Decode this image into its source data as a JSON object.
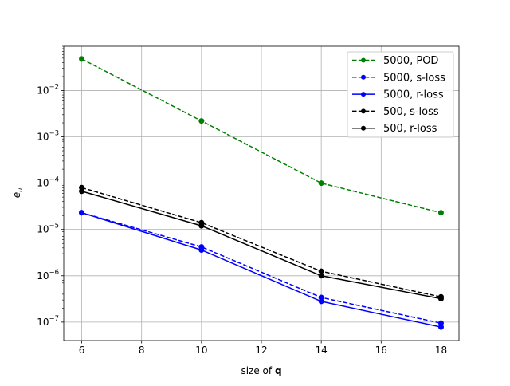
{
  "chart_data": {
    "type": "line",
    "title": "",
    "xlabel_prefix": "size of ",
    "xlabel_bold": "q",
    "ylabel_main": "e",
    "ylabel_sub": "u",
    "x": [
      6,
      10,
      14,
      18
    ],
    "xlim": [
      5.4,
      18.6
    ],
    "ylim": [
      4e-08,
      0.09
    ],
    "yscale": "log",
    "xticks": [
      6,
      8,
      10,
      12,
      14,
      16,
      18
    ],
    "yticks": [
      {
        "value": 1e-07,
        "base": "10",
        "exp": "−7"
      },
      {
        "value": 1e-06,
        "base": "10",
        "exp": "−6"
      },
      {
        "value": 1e-05,
        "base": "10",
        "exp": "−5"
      },
      {
        "value": 0.0001,
        "base": "10",
        "exp": "−4"
      },
      {
        "value": 0.001,
        "base": "10",
        "exp": "−3"
      },
      {
        "value": 0.01,
        "base": "10",
        "exp": "−2"
      }
    ],
    "grid": true,
    "legend_position": "top-right",
    "series": [
      {
        "name": "5000, POD",
        "color": "#008000",
        "dashed": true,
        "values": [
          0.048,
          0.0022,
          0.0001,
          2.3e-05
        ]
      },
      {
        "name": "5000, s-loss",
        "color": "#0000ff",
        "dashed": true,
        "values": [
          2.3e-05,
          4.2e-06,
          3.4e-07,
          9.5e-08
        ]
      },
      {
        "name": "5000, r-loss",
        "color": "#0000ff",
        "dashed": false,
        "values": [
          2.3e-05,
          3.6e-06,
          2.8e-07,
          7.8e-08
        ]
      },
      {
        "name": "500, s-loss",
        "color": "#000000",
        "dashed": true,
        "values": [
          8e-05,
          1.4e-05,
          1.25e-06,
          3.5e-07
        ]
      },
      {
        "name": "500, r-loss",
        "color": "#000000",
        "dashed": false,
        "values": [
          6.7e-05,
          1.2e-05,
          1e-06,
          3.2e-07
        ]
      }
    ]
  }
}
